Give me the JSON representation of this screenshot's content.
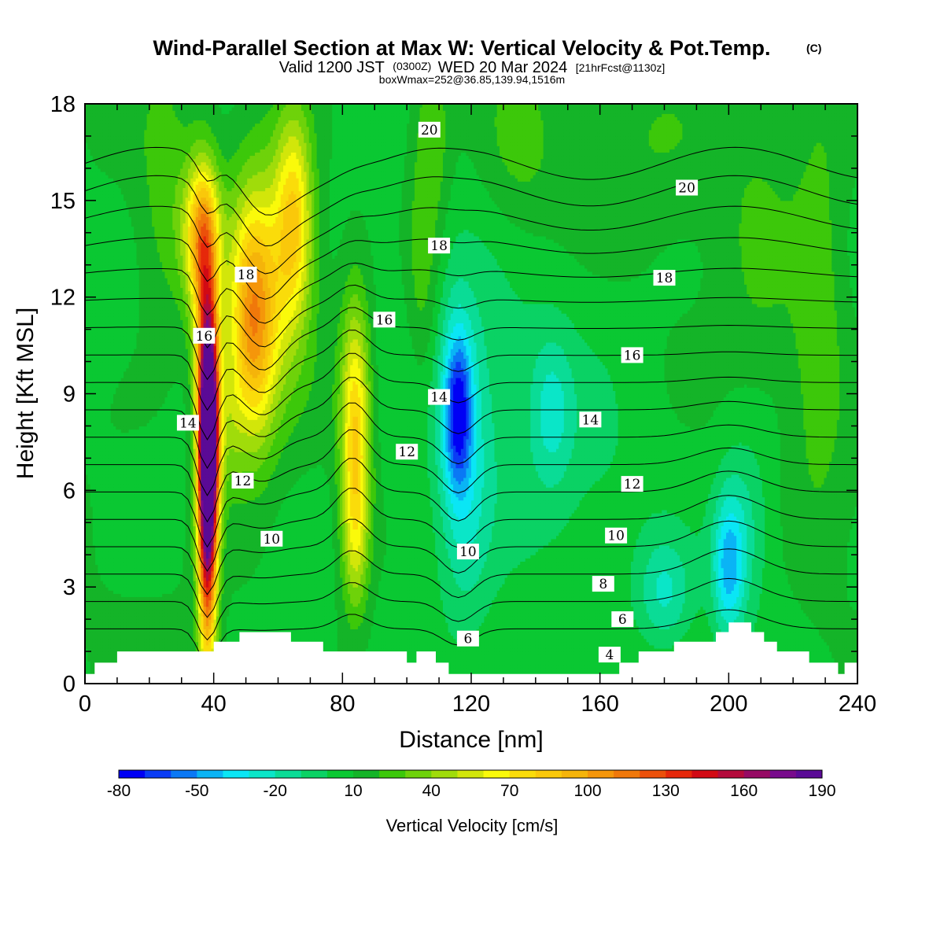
{
  "chart_data": {
    "type": "heatmap",
    "title": "Wind-Parallel Section at Max W: Vertical Velocity & Pot.Temp.",
    "title_mark": "(C)",
    "subtitle_valid": "Valid 1200 JST",
    "subtitle_utc": "(0300Z)",
    "subtitle_date": "WED 20 Mar 2024",
    "subtitle_fcst": "[21hrFcst@1130z]",
    "subtitle_box": "boxWmax=252@36.85,139.94,1516m",
    "xlabel": "Distance [nm]",
    "ylabel": "Height [Kft MSL]",
    "xlim": [
      0,
      240
    ],
    "ylim": [
      0,
      18
    ],
    "x_ticks": [
      0,
      40,
      80,
      120,
      160,
      200,
      240
    ],
    "y_ticks": [
      0,
      3,
      6,
      9,
      12,
      15,
      18
    ],
    "colorbar": {
      "title": "Vertical Velocity [cm/s]",
      "min": -80,
      "max": 190,
      "step": 10,
      "tick_values": [
        -80,
        -50,
        -20,
        10,
        40,
        70,
        100,
        130,
        160,
        190
      ],
      "colors": [
        "#0000f5",
        "#0a3cf5",
        "#0a78f5",
        "#0ab4f5",
        "#0ae6f5",
        "#0ae6c8",
        "#0adc96",
        "#0ad264",
        "#0ac832",
        "#14b428",
        "#3cc80a",
        "#6ed20a",
        "#a0dc0a",
        "#d2e60a",
        "#fafa0a",
        "#fadc0a",
        "#fac80a",
        "#f5b40a",
        "#f5960a",
        "#f0780a",
        "#eb500a",
        "#e6280a",
        "#d20a14",
        "#b40a3c",
        "#960a64",
        "#780a8c",
        "#5a0a96"
      ]
    },
    "updrafts": [
      {
        "x": 38,
        "z": 8,
        "w": 190
      },
      {
        "x": 55,
        "z": 12,
        "w": 90
      },
      {
        "x": 65,
        "z": 15,
        "w": 80
      },
      {
        "x": 84,
        "z": 8,
        "w": 75
      },
      {
        "x": 115,
        "z": 8,
        "w": -55
      },
      {
        "x": 145,
        "z": 8.5,
        "w": -20
      },
      {
        "x": 200,
        "z": 3.5,
        "w": -45
      }
    ],
    "isentropes": [
      {
        "theta": 4,
        "label_x": 163,
        "label_z": 0.9
      },
      {
        "theta": 6,
        "label_x": 119,
        "label_z": 1.4
      },
      {
        "theta": 6,
        "label_x": 167,
        "label_z": 2.0
      },
      {
        "theta": 8,
        "label_x": 161,
        "label_z": 3.1
      },
      {
        "theta": 10,
        "label_x": 58,
        "label_z": 4.5
      },
      {
        "theta": 10,
        "label_x": 119,
        "label_z": 4.1
      },
      {
        "theta": 10,
        "label_x": 165,
        "label_z": 4.6
      },
      {
        "theta": 12,
        "label_x": 49,
        "label_z": 6.3
      },
      {
        "theta": 12,
        "label_x": 100,
        "label_z": 7.2
      },
      {
        "theta": 12,
        "label_x": 170,
        "label_z": 6.2
      },
      {
        "theta": 14,
        "label_x": 32,
        "label_z": 8.1
      },
      {
        "theta": 14,
        "label_x": 110,
        "label_z": 8.9
      },
      {
        "theta": 14,
        "label_x": 157,
        "label_z": 8.2
      },
      {
        "theta": 16,
        "label_x": 37,
        "label_z": 10.8
      },
      {
        "theta": 16,
        "label_x": 93,
        "label_z": 11.3
      },
      {
        "theta": 16,
        "label_x": 170,
        "label_z": 10.2
      },
      {
        "theta": 18,
        "label_x": 50,
        "label_z": 12.7
      },
      {
        "theta": 18,
        "label_x": 110,
        "label_z": 13.6
      },
      {
        "theta": 18,
        "label_x": 180,
        "label_z": 12.6
      },
      {
        "theta": 20,
        "label_x": 107,
        "label_z": 17.2
      },
      {
        "theta": 20,
        "label_x": 187,
        "label_z": 15.4
      }
    ],
    "terrain": [
      [
        0,
        0.3
      ],
      [
        3,
        0.3
      ],
      [
        3,
        0.65
      ],
      [
        10,
        0.65
      ],
      [
        10,
        1.0
      ],
      [
        40,
        1.0
      ],
      [
        40,
        1.3
      ],
      [
        48,
        1.3
      ],
      [
        48,
        1.6
      ],
      [
        64,
        1.6
      ],
      [
        64,
        1.3
      ],
      [
        74,
        1.3
      ],
      [
        74,
        1.0
      ],
      [
        100,
        1.0
      ],
      [
        100,
        0.65
      ],
      [
        103,
        0.65
      ],
      [
        103,
        1.0
      ],
      [
        109,
        1.0
      ],
      [
        109,
        0.65
      ],
      [
        113,
        0.65
      ],
      [
        113,
        0.3
      ],
      [
        166,
        0.3
      ],
      [
        166,
        0.65
      ],
      [
        172,
        0.65
      ],
      [
        172,
        1.0
      ],
      [
        183,
        1.0
      ],
      [
        183,
        1.3
      ],
      [
        196,
        1.3
      ],
      [
        196,
        1.6
      ],
      [
        200,
        1.6
      ],
      [
        200,
        1.9
      ],
      [
        207,
        1.9
      ],
      [
        207,
        1.6
      ],
      [
        211,
        1.6
      ],
      [
        211,
        1.3
      ],
      [
        215,
        1.3
      ],
      [
        215,
        1.0
      ],
      [
        225,
        1.0
      ],
      [
        225,
        0.65
      ],
      [
        234,
        0.65
      ],
      [
        234,
        0.3
      ],
      [
        236,
        0.3
      ],
      [
        236,
        0.65
      ],
      [
        240,
        0.65
      ],
      [
        240,
        0
      ],
      [
        0,
        0
      ]
    ]
  }
}
